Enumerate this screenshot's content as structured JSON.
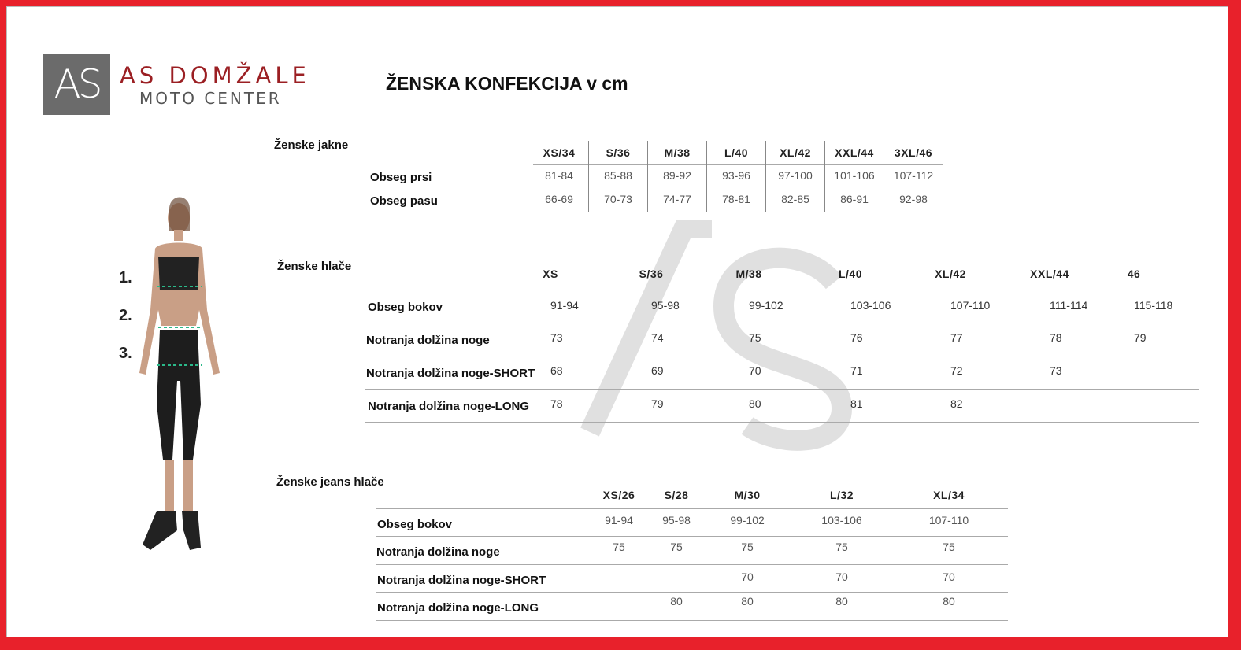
{
  "logo": {
    "mark": "AS",
    "brand": "AS DOMŽALE",
    "sub": "MOTO CENTER"
  },
  "title": "ŽENSKA KONFEKCIJA v cm",
  "figure": {
    "markers": [
      "1.",
      "2.",
      "3."
    ]
  },
  "watermark": {
    "mark": "AS",
    "brand": "AS DOMŽALE",
    "sub": "MOTO CENTER"
  },
  "jackets": {
    "title": "Ženske jakne",
    "sizes": [
      "XS/34",
      "S/36",
      "M/38",
      "L/40",
      "XL/42",
      "XXL/44",
      "3XL/46"
    ],
    "rows": [
      {
        "label": "Obseg prsi",
        "values": [
          "81-84",
          "85-88",
          "89-92",
          "93-96",
          "97-100",
          "101-106",
          "107-112"
        ]
      },
      {
        "label": "Obseg pasu",
        "values": [
          "66-69",
          "70-73",
          "74-77",
          "78-81",
          "82-85",
          "86-91",
          "92-98"
        ]
      }
    ]
  },
  "pants": {
    "title": "Ženske hlače",
    "sizes": [
      "XS",
      "S/36",
      "M/38",
      "L/40",
      "XL/42",
      "XXL/44",
      "46"
    ],
    "rows": [
      {
        "label": "Obseg bokov",
        "values": [
          "91-94",
          "95-98",
          "99-102",
          "103-106",
          "107-110",
          "111-114",
          "115-118"
        ]
      },
      {
        "label": "Notranja dolžina noge",
        "values": [
          "73",
          "74",
          "75",
          "76",
          "77",
          "78",
          "79"
        ]
      },
      {
        "label": "Notranja dolžina noge-SHORT",
        "values": [
          "68",
          "69",
          "70",
          "71",
          "72",
          "73",
          ""
        ]
      },
      {
        "label": "Notranja dolžina noge-LONG",
        "values": [
          "78",
          "79",
          "80",
          "81",
          "82",
          "",
          ""
        ]
      }
    ]
  },
  "jeans": {
    "title": "Ženske jeans hlače",
    "sizes": [
      "XS/26",
      "S/28",
      "M/30",
      "L/32",
      "XL/34"
    ],
    "rows": [
      {
        "label": "Obseg bokov",
        "values": [
          "91-94",
          "95-98",
          "99-102",
          "103-106",
          "107-110"
        ]
      },
      {
        "label": "Notranja dolžina noge",
        "values": [
          "75",
          "75",
          "75",
          "75",
          "75"
        ]
      },
      {
        "label": "Notranja dolžina noge-SHORT",
        "values": [
          "",
          "",
          "70",
          "70",
          "70"
        ]
      },
      {
        "label": "Notranja dolžina noge-LONG",
        "values": [
          "",
          "80",
          "80",
          "80",
          "80"
        ]
      }
    ]
  }
}
